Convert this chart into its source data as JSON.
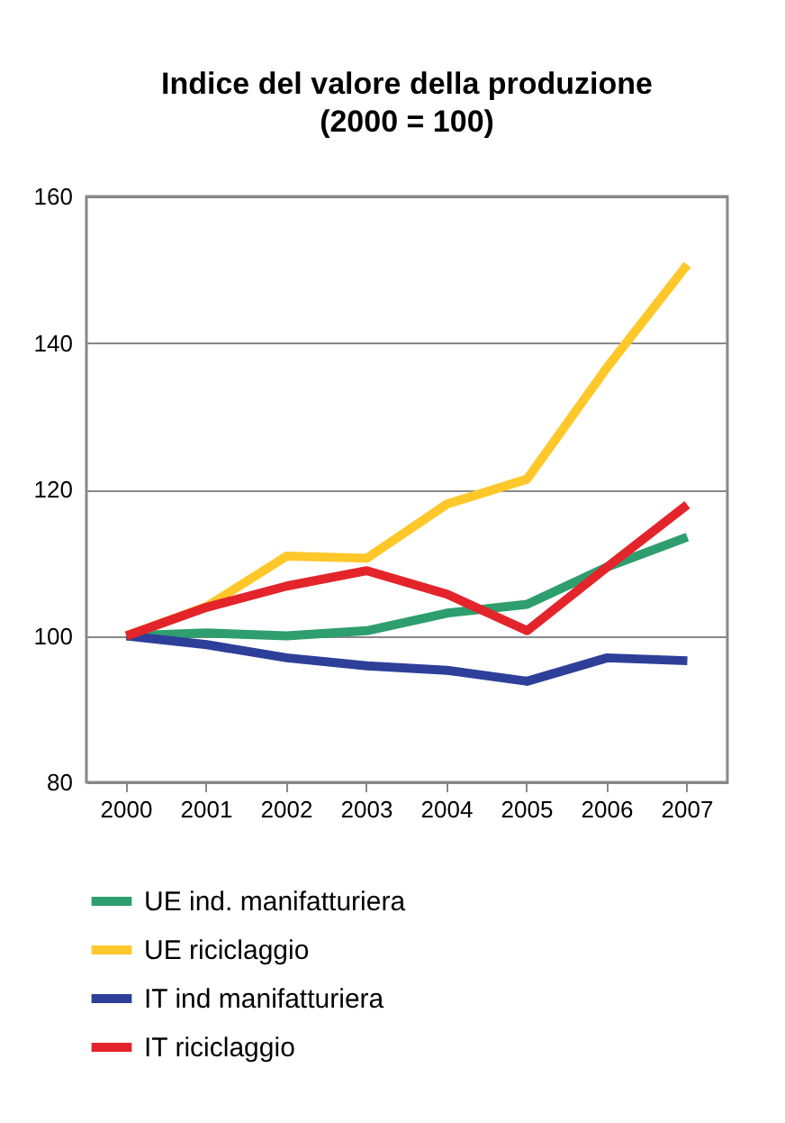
{
  "chart_data": {
    "type": "line",
    "title": "Indice del valore della produzione",
    "subtitle": "(2000 = 100)",
    "categories": [
      "2000",
      "2001",
      "2002",
      "2003",
      "2004",
      "2005",
      "2006",
      "2007"
    ],
    "series": [
      {
        "name": "UE ind. manifatturiera",
        "color": "#2e9e6e",
        "values": [
          100,
          100.4,
          100,
          100.7,
          103.1,
          104.3,
          109.4,
          113.5
        ]
      },
      {
        "name": "UE riciclaggio",
        "color": "#ffc82a",
        "values": [
          100,
          104,
          110.9,
          110.6,
          118,
          121.4,
          136.7,
          150.7
        ]
      },
      {
        "name": "IT ind manifatturiera",
        "color": "#2e3f99",
        "values": [
          100,
          98.8,
          97,
          95.9,
          95.3,
          93.8,
          97,
          96.6
        ]
      },
      {
        "name": "IT riciclaggio",
        "color": "#e3242b",
        "values": [
          100,
          103.9,
          106.8,
          108.9,
          105.7,
          100.7,
          109.4,
          117.9
        ]
      }
    ],
    "ylim": [
      80,
      160
    ],
    "yticks": [
      80,
      100,
      120,
      140,
      160
    ],
    "grid": "y",
    "legend": "bottom",
    "line_style": "solid"
  }
}
